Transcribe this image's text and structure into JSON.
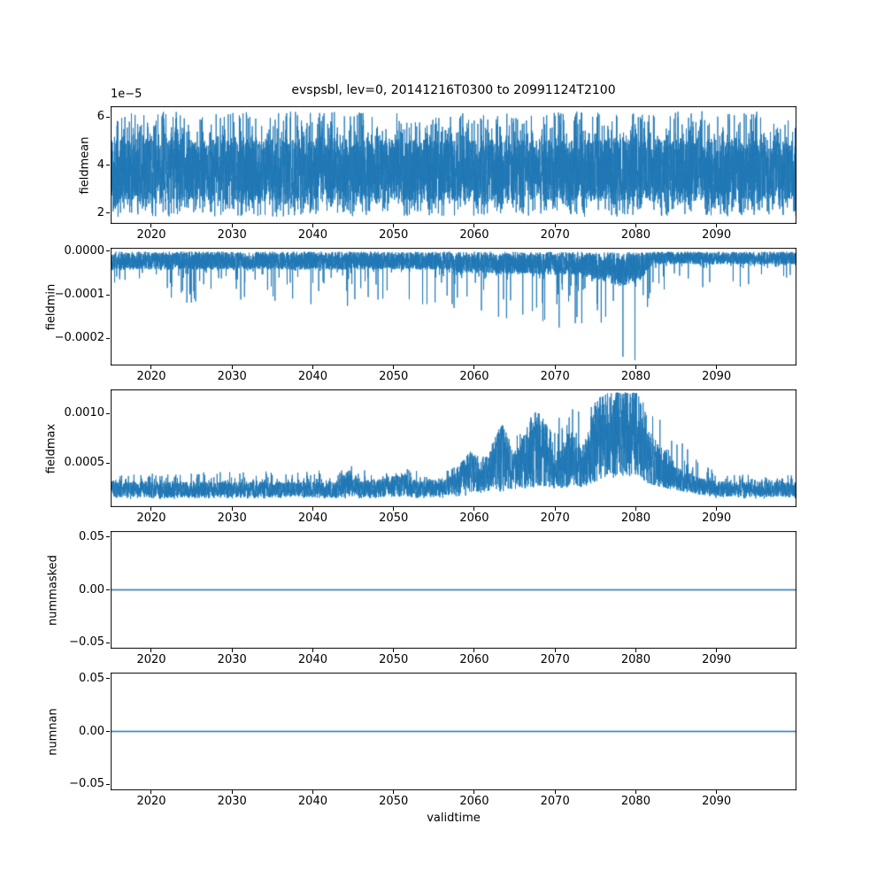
{
  "figure": {
    "title": "evspsbl, lev=0, 20141216T0300 to 20991124T2100",
    "xlabel": "validtime",
    "line_color": "#1f77b4",
    "axis_color": "#000000",
    "background": "#ffffff"
  },
  "x_axis": {
    "lim": [
      2014.96,
      2099.9
    ],
    "ticks": [
      {
        "v": 2020,
        "label": "2020"
      },
      {
        "v": 2030,
        "label": "2030"
      },
      {
        "v": 2040,
        "label": "2040"
      },
      {
        "v": 2050,
        "label": "2050"
      },
      {
        "v": 2060,
        "label": "2060"
      },
      {
        "v": 2070,
        "label": "2070"
      },
      {
        "v": 2080,
        "label": "2080"
      },
      {
        "v": 2090,
        "label": "2090"
      }
    ]
  },
  "chart_data": [
    {
      "type": "line",
      "id": "fieldmean",
      "ylabel": "fieldmean",
      "offset_label": "1e−5",
      "ylim": [
        1.55e-05,
        6.45e-05
      ],
      "yticks": [
        {
          "v": 2e-05,
          "label": "2"
        },
        {
          "v": 4e-05,
          "label": "4"
        },
        {
          "v": 6e-05,
          "label": "6"
        }
      ],
      "signal": {
        "kind": "noisy_band",
        "seed": 11,
        "points": 6000,
        "envelope": [
          {
            "x": 2014.96,
            "lo": 2.6e-05,
            "hi": 5e-05
          },
          {
            "x": 2099.9,
            "lo": 2.6e-05,
            "hi": 5e-05
          }
        ],
        "spikes": {
          "p_lo": 0.12,
          "p_hi": 0.12,
          "envelope": [
            {
              "x": 2014.96,
              "lo": 1.85e-05,
              "hi": 6.25e-05
            },
            {
              "x": 2099.9,
              "lo": 1.85e-05,
              "hi": 6.25e-05
            }
          ]
        }
      }
    },
    {
      "type": "line",
      "id": "fieldmin",
      "ylabel": "fieldmin",
      "ylim": [
        -0.000262,
        8e-06
      ],
      "yticks": [
        {
          "v": 0,
          "label": "0.0000"
        },
        {
          "v": -0.0001,
          "label": "−0.0001"
        },
        {
          "v": -0.0002,
          "label": "−0.0002"
        }
      ],
      "signal": {
        "kind": "noisy_band",
        "seed": 22,
        "points": 6000,
        "envelope": [
          {
            "x": 2014.96,
            "lo": -4.2e-05,
            "hi": -1e-06
          },
          {
            "x": 2056,
            "lo": -4.2e-05,
            "hi": -1e-06
          },
          {
            "x": 2058,
            "lo": -5e-05,
            "hi": -1e-06
          },
          {
            "x": 2073,
            "lo": -5.5e-05,
            "hi": -1e-06
          },
          {
            "x": 2075,
            "lo": -6.5e-05,
            "hi": -2e-06
          },
          {
            "x": 2078,
            "lo": -8e-05,
            "hi": -3e-06
          },
          {
            "x": 2080.5,
            "lo": -7e-05,
            "hi": -2e-06
          },
          {
            "x": 2082,
            "lo": -3e-05,
            "hi": -1e-06
          },
          {
            "x": 2099.9,
            "lo": -3e-05,
            "hi": -1e-06
          }
        ],
        "spikes": {
          "p_lo": 0.04,
          "p_hi": 0,
          "envelope": [
            {
              "x": 2014.96,
              "lo": -0.00012,
              "hi": 0
            },
            {
              "x": 2056,
              "lo": -0.00013,
              "hi": 0
            },
            {
              "x": 2060,
              "lo": -0.000155,
              "hi": 0
            },
            {
              "x": 2074,
              "lo": -0.00018,
              "hi": 0
            },
            {
              "x": 2080.5,
              "lo": -0.0002,
              "hi": 0
            },
            {
              "x": 2082,
              "lo": -9e-05,
              "hi": 0
            },
            {
              "x": 2099.9,
              "lo": -8e-05,
              "hi": 0
            }
          ]
        },
        "extremes": [
          {
            "x": 2025.5,
            "v": -0.000115
          },
          {
            "x": 2044.3,
            "v": -0.000125
          },
          {
            "x": 2045.2,
            "v": -0.00011
          },
          {
            "x": 2057.5,
            "v": -0.00013
          },
          {
            "x": 2063,
            "v": -0.00015
          },
          {
            "x": 2066,
            "v": -0.000145
          },
          {
            "x": 2068.5,
            "v": -0.00016
          },
          {
            "x": 2070.5,
            "v": -0.000175
          },
          {
            "x": 2072.5,
            "v": -0.000165
          },
          {
            "x": 2078.4,
            "v": -0.000242
          },
          {
            "x": 2079.9,
            "v": -0.00025
          }
        ]
      }
    },
    {
      "type": "line",
      "id": "fieldmax",
      "ylabel": "fieldmax",
      "ylim": [
        6e-05,
        0.00124
      ],
      "yticks": [
        {
          "v": 0.0005,
          "label": "0.0005"
        },
        {
          "v": 0.001,
          "label": "0.0010"
        }
      ],
      "signal": {
        "kind": "noisy_band",
        "seed": 33,
        "points": 5000,
        "envelope": [
          {
            "x": 2014.96,
            "lo": 0.00016,
            "hi": 0.00031
          },
          {
            "x": 2043,
            "lo": 0.00016,
            "hi": 0.00031
          },
          {
            "x": 2044.5,
            "lo": 0.00018,
            "hi": 0.00043
          },
          {
            "x": 2046,
            "lo": 0.00016,
            "hi": 0.00032
          },
          {
            "x": 2051.5,
            "lo": 0.00017,
            "hi": 0.00039
          },
          {
            "x": 2053,
            "lo": 0.00016,
            "hi": 0.00032
          },
          {
            "x": 2057,
            "lo": 0.00018,
            "hi": 0.00036
          },
          {
            "x": 2059.5,
            "lo": 0.00022,
            "hi": 0.00062
          },
          {
            "x": 2061,
            "lo": 0.00022,
            "hi": 0.00048
          },
          {
            "x": 2063.5,
            "lo": 0.00026,
            "hi": 0.00092
          },
          {
            "x": 2065,
            "lo": 0.00024,
            "hi": 0.0006
          },
          {
            "x": 2067.3,
            "lo": 0.00028,
            "hi": 0.00102
          },
          {
            "x": 2068.6,
            "lo": 0.00028,
            "hi": 0.00098
          },
          {
            "x": 2070,
            "lo": 0.00024,
            "hi": 0.00055
          },
          {
            "x": 2071.8,
            "lo": 0.00026,
            "hi": 0.00083
          },
          {
            "x": 2073.5,
            "lo": 0.00026,
            "hi": 0.00066
          },
          {
            "x": 2075.3,
            "lo": 0.00032,
            "hi": 0.00113
          },
          {
            "x": 2076.5,
            "lo": 0.0004,
            "hi": 0.0012
          },
          {
            "x": 2080.2,
            "lo": 0.00038,
            "hi": 0.0012
          },
          {
            "x": 2081.5,
            "lo": 0.0003,
            "hi": 0.00086
          },
          {
            "x": 2083,
            "lo": 0.00026,
            "hi": 0.00068
          },
          {
            "x": 2085,
            "lo": 0.00023,
            "hi": 0.00048
          },
          {
            "x": 2087.5,
            "lo": 0.00019,
            "hi": 0.00036
          },
          {
            "x": 2090,
            "lo": 0.00017,
            "hi": 0.00032
          },
          {
            "x": 2099.9,
            "lo": 0.00016,
            "hi": 0.00031
          }
        ],
        "spikes": {
          "p_lo": 0.05,
          "p_hi": 0.08,
          "envelope": [
            {
              "x": 2014.96,
              "lo": 0.00014,
              "hi": 0.00039
            },
            {
              "x": 2057,
              "lo": 0.00015,
              "hi": 0.00046
            },
            {
              "x": 2076.5,
              "lo": 0.00035,
              "hi": 0.00121
            },
            {
              "x": 2080,
              "lo": 0.00035,
              "hi": 0.00121
            },
            {
              "x": 2090,
              "lo": 0.00015,
              "hi": 0.00039
            },
            {
              "x": 2099.9,
              "lo": 0.00014,
              "hi": 0.00038
            }
          ]
        },
        "extremes": [
          {
            "x": 2044.8,
            "v": 0.00047
          },
          {
            "x": 2051.9,
            "v": 0.00043
          }
        ]
      }
    },
    {
      "type": "line",
      "id": "nummasked",
      "ylabel": "nummasked",
      "ylim": [
        -0.0555,
        0.0555
      ],
      "yticks": [
        {
          "v": 0.05,
          "label": "0.05"
        },
        {
          "v": 0,
          "label": "0.00"
        },
        {
          "v": -0.05,
          "label": "−0.05"
        }
      ],
      "signal": {
        "kind": "constant",
        "value": 0
      }
    },
    {
      "type": "line",
      "id": "numnan",
      "ylabel": "numnan",
      "ylim": [
        -0.0555,
        0.0555
      ],
      "yticks": [
        {
          "v": 0.05,
          "label": "0.05"
        },
        {
          "v": 0,
          "label": "0.00"
        },
        {
          "v": -0.05,
          "label": "−0.05"
        }
      ],
      "signal": {
        "kind": "constant",
        "value": 0
      }
    }
  ]
}
